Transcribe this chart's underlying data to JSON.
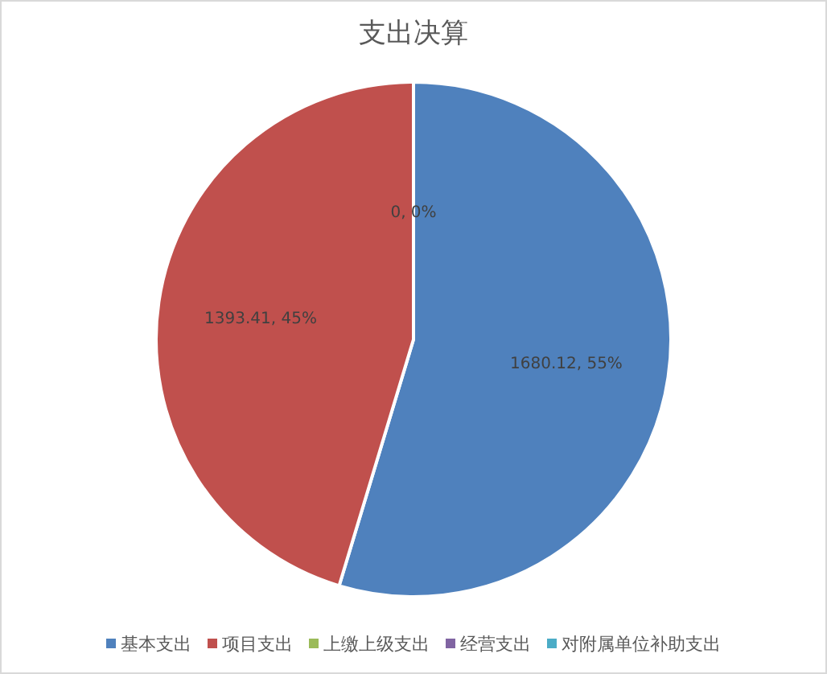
{
  "chart_data": {
    "type": "pie",
    "title": "支出决算",
    "categories": [
      "基本支出",
      "项目支出",
      "上缴上级支出",
      "经营支出",
      "对附属单位补助支出"
    ],
    "values": [
      1680.12,
      1393.41,
      0,
      0,
      0
    ],
    "colors": [
      "#4f81bd",
      "#c0504d",
      "#9bbb59",
      "#8064a2",
      "#4bacc6"
    ],
    "value_labels": [
      "1680.12, 55%",
      "1393.41, 45%",
      "0, 0%",
      null,
      null
    ],
    "legend": "bottom"
  }
}
